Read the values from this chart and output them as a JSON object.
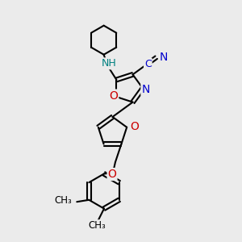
{
  "bg_color": "#ebebeb",
  "bond_color": "#000000",
  "bond_width": 1.5,
  "atom_colors": {
    "N": "#0000cc",
    "O": "#cc0000",
    "NH": "#008080",
    "C": "#000000"
  },
  "font_size": 9
}
